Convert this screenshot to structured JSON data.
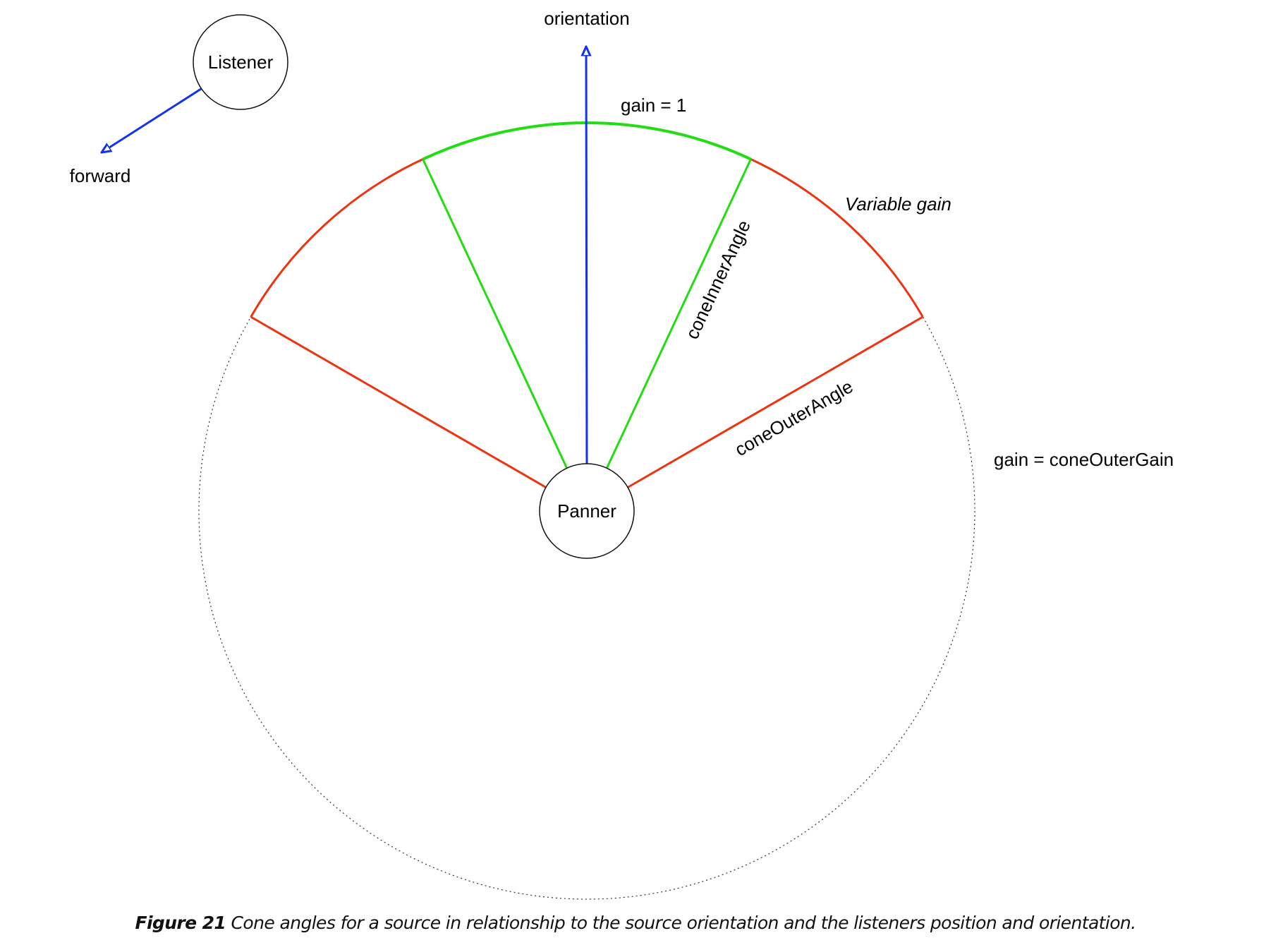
{
  "labels": {
    "listener": "Listener",
    "forward": "forward",
    "orientation": "orientation",
    "gain_one": "gain = 1",
    "variable_gain": "Variable gain",
    "cone_inner_angle": "coneInnerAngle",
    "cone_outer_angle": "coneOuterAngle",
    "outer_gain": "gain = coneOuterGain",
    "panner": "Panner"
  },
  "caption": {
    "figure": "Figure 21",
    "text": " Cone angles for a source in relationship to the source orientation and the listeners position and orientation."
  },
  "colors": {
    "inner_cone": "#22dd11",
    "outer_cone": "#ee3311",
    "vector": "#1133ee"
  }
}
